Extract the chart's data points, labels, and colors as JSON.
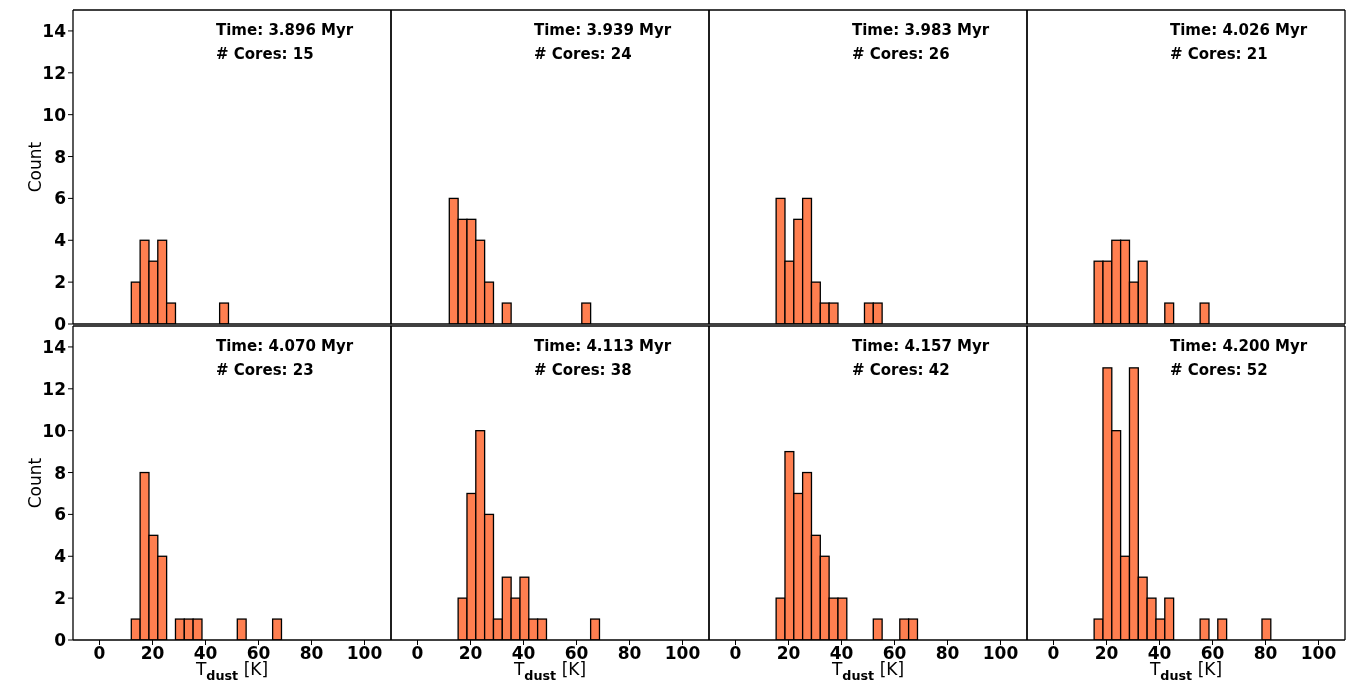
{
  "chart_data": [
    {
      "type": "histogram",
      "bins": [
        12,
        15.33,
        18.67,
        22,
        25.33,
        28.67,
        32,
        35.33,
        38.67,
        42,
        45.33,
        48.67,
        52,
        55.33,
        58.67,
        62,
        65.33,
        68.67,
        72,
        75.33,
        78.67,
        82,
        85.33
      ],
      "values": [
        2,
        4,
        3,
        4,
        1,
        0,
        0,
        0,
        0,
        0,
        1,
        0,
        0,
        0,
        0,
        0,
        0,
        0,
        0,
        0,
        0,
        0
      ],
      "color": "#ff7f50",
      "xlim": [
        -10,
        110
      ],
      "xticks": [
        0,
        20,
        40,
        60,
        80,
        100
      ],
      "ylim": [
        0,
        15
      ],
      "yticks": [
        0,
        2,
        4,
        6,
        8,
        10,
        12,
        14
      ],
      "ylabel": "Count",
      "tick_labels": "y",
      "annotations": [
        "Time: 3.896 Myr",
        "# Cores: 15"
      ]
    },
    {
      "type": "histogram",
      "bins": [
        12,
        15.33,
        18.67,
        22,
        25.33,
        28.67,
        32,
        35.33,
        38.67,
        42,
        45.33,
        48.67,
        52,
        55.33,
        58.67,
        62,
        65.33,
        68.67,
        72,
        75.33,
        78.67,
        82,
        85.33
      ],
      "values": [
        6,
        5,
        5,
        4,
        2,
        0,
        1,
        0,
        0,
        0,
        0,
        0,
        0,
        0,
        0,
        1,
        0,
        0,
        0,
        0,
        0,
        0
      ],
      "color": "#ff7f50",
      "xlim": [
        -10,
        110
      ],
      "xticks": [
        0,
        20,
        40,
        60,
        80,
        100
      ],
      "ylim": [
        0,
        15
      ],
      "yticks": [
        0,
        2,
        4,
        6,
        8,
        10,
        12,
        14
      ],
      "tick_labels": false,
      "annotations": [
        "Time: 3.939 Myr",
        "# Cores: 24"
      ]
    },
    {
      "type": "histogram",
      "bins": [
        12,
        15.33,
        18.67,
        22,
        25.33,
        28.67,
        32,
        35.33,
        38.67,
        42,
        45.33,
        48.67,
        52,
        55.33,
        58.67,
        62,
        65.33,
        68.67,
        72,
        75.33,
        78.67,
        82,
        85.33
      ],
      "values": [
        0,
        6,
        3,
        5,
        6,
        2,
        1,
        1,
        0,
        0,
        0,
        1,
        1,
        0,
        0,
        0,
        0,
        0,
        0,
        0,
        0,
        0
      ],
      "color": "#ff7f50",
      "xlim": [
        -10,
        110
      ],
      "xticks": [
        0,
        20,
        40,
        60,
        80,
        100
      ],
      "ylim": [
        0,
        15
      ],
      "yticks": [
        0,
        2,
        4,
        6,
        8,
        10,
        12,
        14
      ],
      "tick_labels": false,
      "annotations": [
        "Time: 3.983 Myr",
        "# Cores: 26"
      ]
    },
    {
      "type": "histogram",
      "bins": [
        12,
        15.33,
        18.67,
        22,
        25.33,
        28.67,
        32,
        35.33,
        38.67,
        42,
        45.33,
        48.67,
        52,
        55.33,
        58.67,
        62,
        65.33,
        68.67,
        72,
        75.33,
        78.67,
        82,
        85.33
      ],
      "values": [
        0,
        3,
        3,
        4,
        4,
        2,
        3,
        0,
        0,
        1,
        0,
        0,
        0,
        1,
        0,
        0,
        0,
        0,
        0,
        0,
        0,
        0
      ],
      "color": "#ff7f50",
      "xlim": [
        -10,
        110
      ],
      "xticks": [
        0,
        20,
        40,
        60,
        80,
        100
      ],
      "ylim": [
        0,
        15
      ],
      "yticks": [
        0,
        2,
        4,
        6,
        8,
        10,
        12,
        14
      ],
      "tick_labels": false,
      "annotations": [
        "Time: 4.026 Myr",
        "# Cores: 21"
      ]
    },
    {
      "type": "histogram",
      "bins": [
        12,
        15.33,
        18.67,
        22,
        25.33,
        28.67,
        32,
        35.33,
        38.67,
        42,
        45.33,
        48.67,
        52,
        55.33,
        58.67,
        62,
        65.33,
        68.67,
        72,
        75.33,
        78.67,
        82,
        85.33
      ],
      "values": [
        1,
        8,
        5,
        4,
        0,
        1,
        1,
        1,
        0,
        0,
        0,
        0,
        1,
        0,
        0,
        0,
        1,
        0,
        0,
        0,
        0,
        0
      ],
      "color": "#ff7f50",
      "xlim": [
        -10,
        110
      ],
      "xticks": [
        0,
        20,
        40,
        60,
        80,
        100
      ],
      "ylim": [
        0,
        15
      ],
      "yticks": [
        0,
        2,
        4,
        6,
        8,
        10,
        12,
        14
      ],
      "xlabel": "T$_{dust}$ [K]",
      "ylabel": "Count",
      "annotations": [
        "Time: 4.070 Myr",
        "# Cores: 23"
      ]
    },
    {
      "type": "histogram",
      "bins": [
        12,
        15.33,
        18.67,
        22,
        25.33,
        28.67,
        32,
        35.33,
        38.67,
        42,
        45.33,
        48.67,
        52,
        55.33,
        58.67,
        62,
        65.33,
        68.67,
        72,
        75.33,
        78.67,
        82,
        85.33
      ],
      "values": [
        0,
        2,
        7,
        10,
        6,
        1,
        3,
        2,
        3,
        1,
        1,
        0,
        0,
        0,
        0,
        0,
        1,
        0,
        0,
        0,
        0,
        0
      ],
      "color": "#ff7f50",
      "xlim": [
        -10,
        110
      ],
      "xticks": [
        0,
        20,
        40,
        60,
        80,
        100
      ],
      "ylim": [
        0,
        15
      ],
      "yticks": [
        0,
        2,
        4,
        6,
        8,
        10,
        12,
        14
      ],
      "xlabel": "T$_{dust}$ [K]",
      "tick_labels": "x",
      "annotations": [
        "Time: 4.113 Myr",
        "# Cores: 38"
      ]
    },
    {
      "type": "histogram",
      "bins": [
        12,
        15.33,
        18.67,
        22,
        25.33,
        28.67,
        32,
        35.33,
        38.67,
        42,
        45.33,
        48.67,
        52,
        55.33,
        58.67,
        62,
        65.33,
        68.67,
        72,
        75.33,
        78.67,
        82,
        85.33
      ],
      "values": [
        0,
        2,
        9,
        7,
        8,
        5,
        4,
        2,
        2,
        0,
        0,
        0,
        1,
        0,
        0,
        1,
        1,
        0,
        0,
        0,
        0,
        0
      ],
      "color": "#ff7f50",
      "xlim": [
        -10,
        110
      ],
      "xticks": [
        0,
        20,
        40,
        60,
        80,
        100
      ],
      "ylim": [
        0,
        15
      ],
      "yticks": [
        0,
        2,
        4,
        6,
        8,
        10,
        12,
        14
      ],
      "xlabel": "T$_{dust}$ [K]",
      "tick_labels": "x",
      "annotations": [
        "Time: 4.157 Myr",
        "# Cores: 42"
      ]
    },
    {
      "type": "histogram",
      "bins": [
        12,
        15.33,
        18.67,
        22,
        25.33,
        28.67,
        32,
        35.33,
        38.67,
        42,
        45.33,
        48.67,
        52,
        55.33,
        58.67,
        62,
        65.33,
        68.67,
        72,
        75.33,
        78.67,
        82,
        85.33
      ],
      "values": [
        0,
        1,
        13,
        10,
        4,
        13,
        3,
        2,
        1,
        2,
        0,
        0,
        0,
        1,
        0,
        1,
        0,
        0,
        0,
        0,
        1,
        0
      ],
      "color": "#ff7f50",
      "xlim": [
        -10,
        110
      ],
      "xticks": [
        0,
        20,
        40,
        60,
        80,
        100
      ],
      "ylim": [
        0,
        15
      ],
      "yticks": [
        0,
        2,
        4,
        6,
        8,
        10,
        12,
        14
      ],
      "xlabel": "T$_{dust}$ [K]",
      "tick_labels": "x",
      "annotations": [
        "Time: 4.200 Myr",
        "# Cores: 52"
      ]
    }
  ]
}
